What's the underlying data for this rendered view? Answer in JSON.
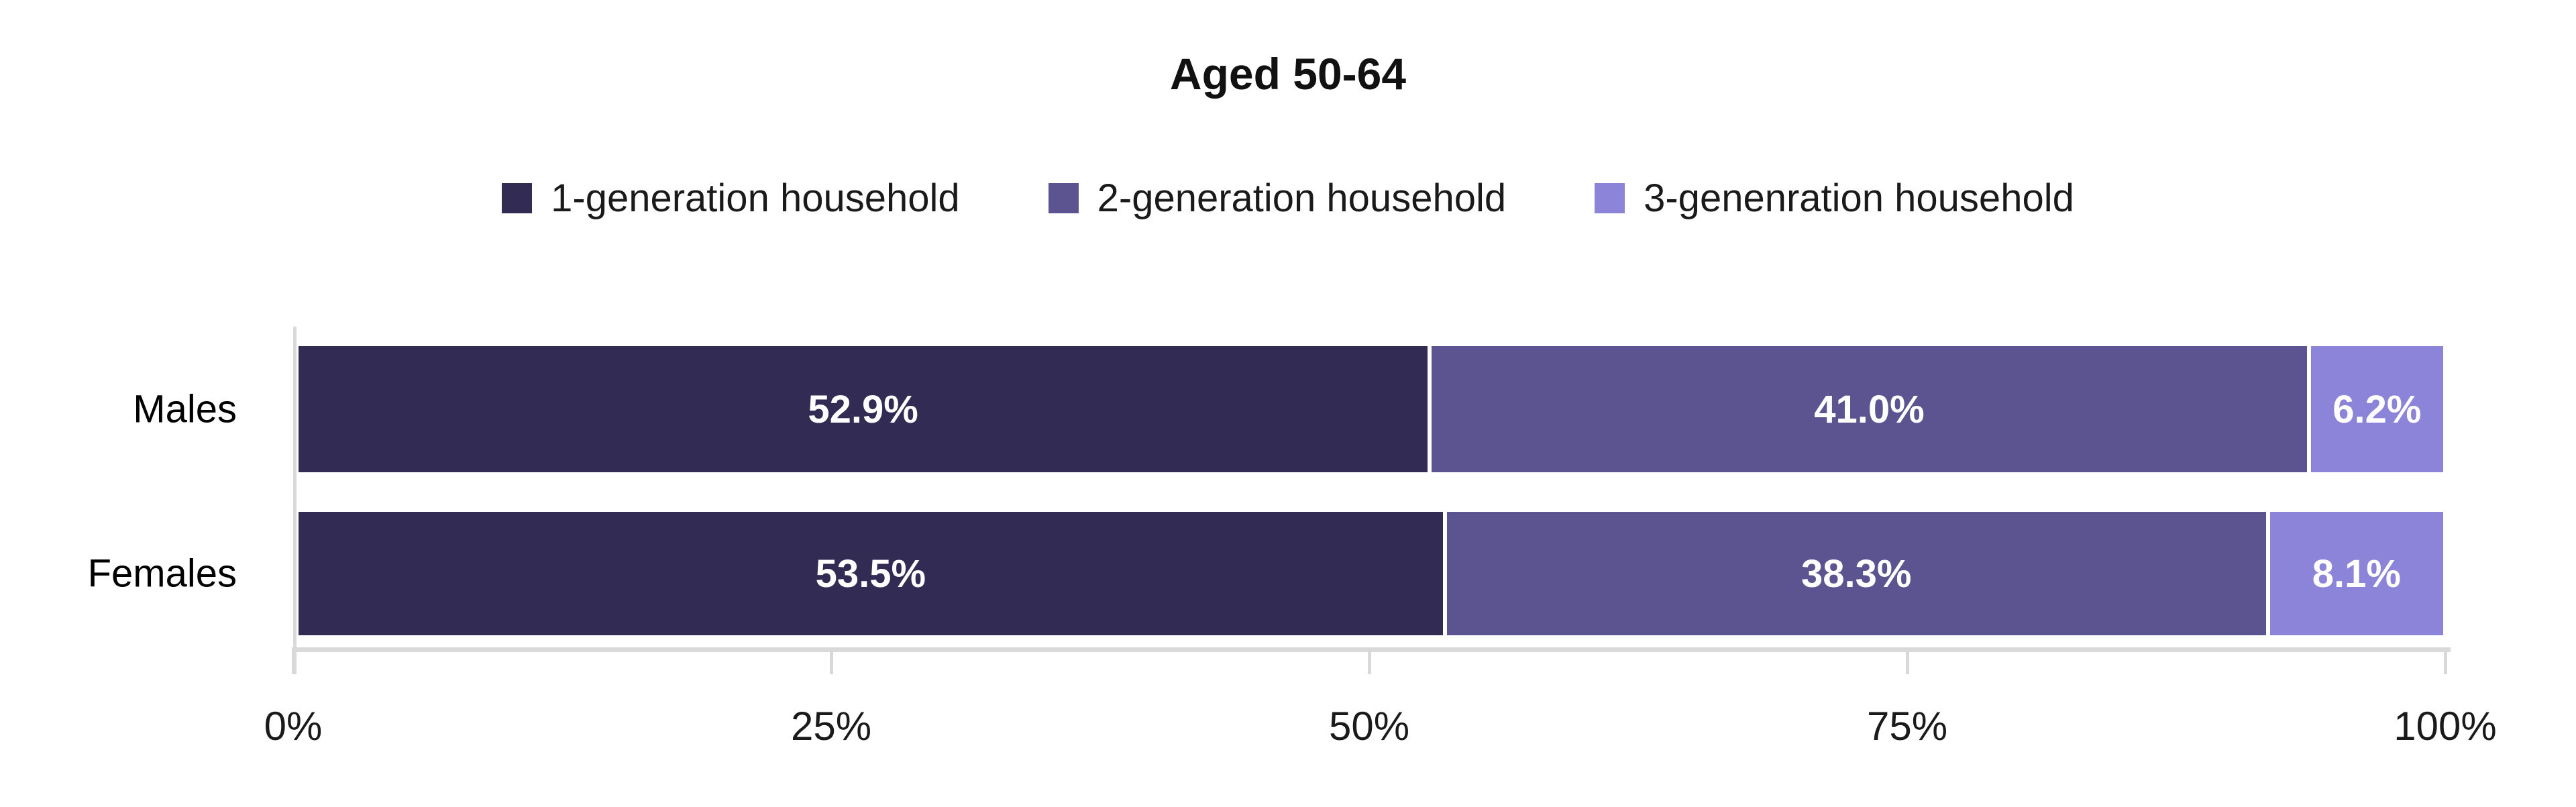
{
  "chart_data": {
    "type": "bar",
    "orientation": "horizontal",
    "stacked": true,
    "title": "Aged 50-64",
    "categories": [
      "Males",
      "Females"
    ],
    "series": [
      {
        "name": "1-generation household",
        "color": "#322B54",
        "values": [
          52.9,
          53.5
        ],
        "labels": [
          "52.9%",
          "53.5%"
        ]
      },
      {
        "name": "2-generation household",
        "color": "#5B5491",
        "values": [
          41.0,
          38.3
        ],
        "labels": [
          "41.0%",
          "38.3%"
        ]
      },
      {
        "name": "3-genenration household",
        "color": "#8C84D8",
        "values": [
          6.2,
          8.1
        ],
        "labels": [
          "6.2%",
          "8.1%"
        ]
      }
    ],
    "x_axis": {
      "ticks": [
        "0%",
        "25%",
        "50%",
        "75%",
        "100%"
      ],
      "range": [
        0,
        100
      ]
    },
    "xlabel": "",
    "ylabel": "",
    "legend_position": "top",
    "grid": false,
    "axis_color": "#D9D9D9",
    "data_label_color": "#FFFFFF",
    "background_color": "#FFFFFF"
  }
}
